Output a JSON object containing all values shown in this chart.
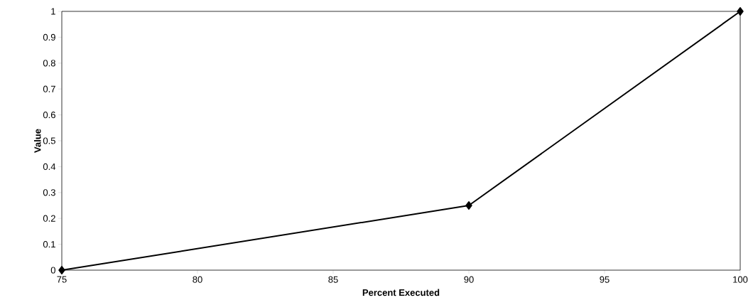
{
  "chart_data": {
    "type": "line",
    "xlabel": "Percent Executed",
    "ylabel": "Value",
    "x": [
      75,
      90,
      100
    ],
    "series": [
      {
        "color": "#000000",
        "values": [
          0,
          0.25,
          1
        ]
      }
    ],
    "xlim": [
      75,
      100
    ],
    "xticks": [
      75,
      80,
      85,
      90,
      95,
      100
    ],
    "ylim": [
      0,
      1
    ],
    "yticks": [
      0,
      0.1,
      0.2,
      0.3,
      0.4,
      0.5,
      0.6,
      0.7,
      0.8,
      0.9,
      1
    ],
    "grid": false,
    "marker": "diamond",
    "line_style": "solid"
  }
}
